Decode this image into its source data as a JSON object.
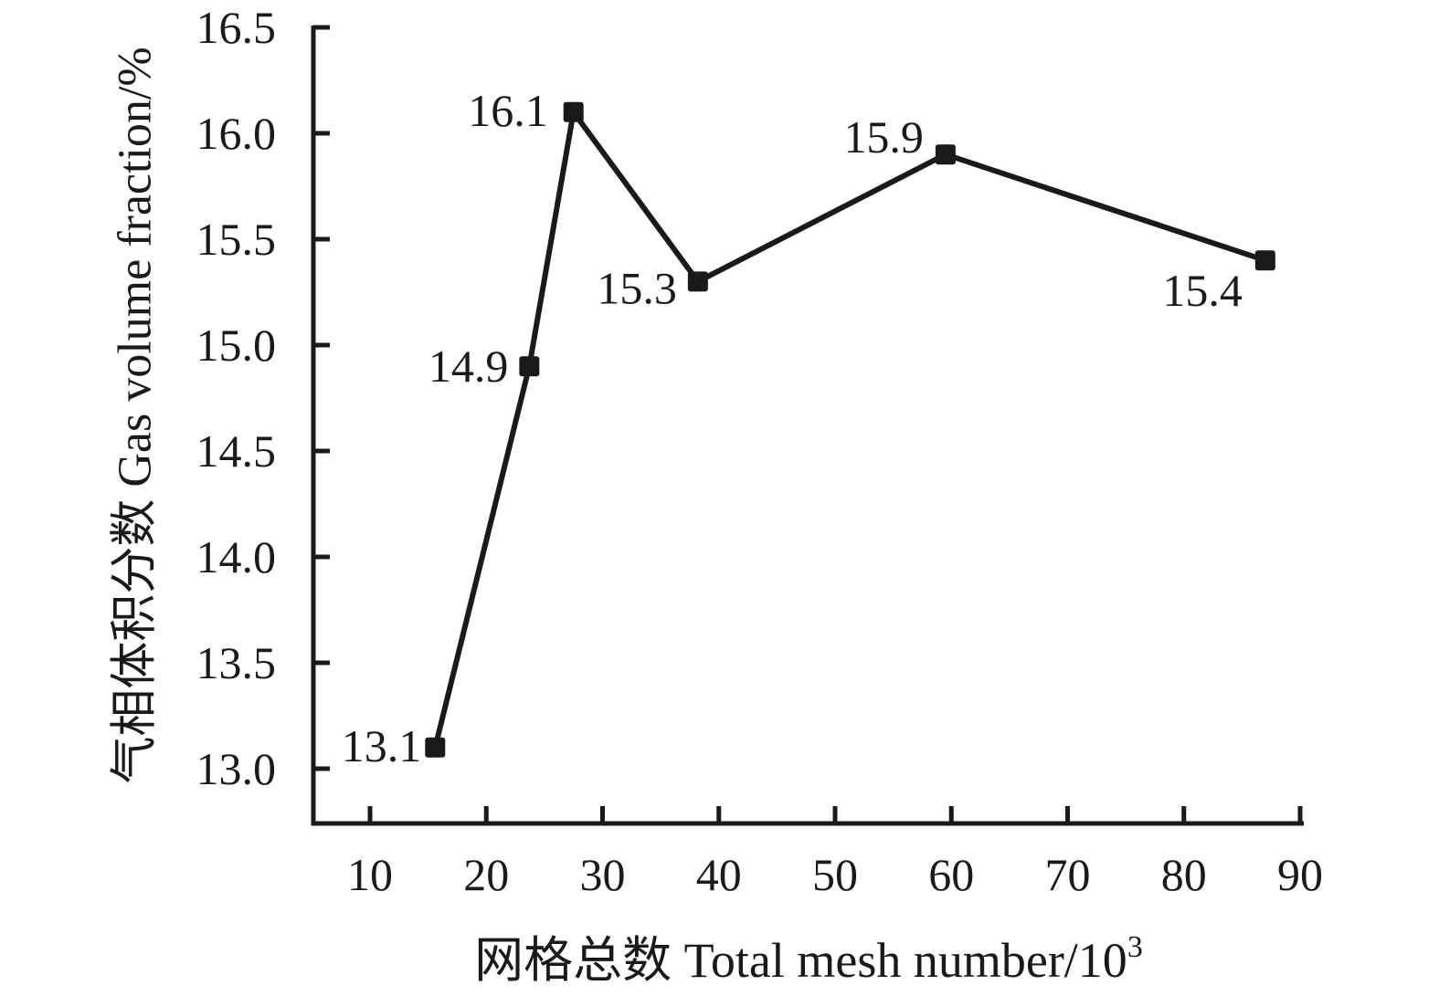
{
  "figure": {
    "background": "#ffffff",
    "ink_color": "#1a1a1a"
  },
  "chart_data": {
    "type": "line",
    "title": "",
    "xlabel_cjk": "网格总数",
    "xlabel_latin": " Total mesh number/10",
    "xlabel_superscript": "3",
    "ylabel": "气相体积分数 Gas volume fraction/%",
    "x_ticks": {
      "values": [
        10,
        20,
        30,
        40,
        50,
        60,
        70,
        80,
        90
      ],
      "labels": [
        "10",
        "20",
        "30",
        "40",
        "50",
        "60",
        "70",
        "80",
        "90"
      ]
    },
    "y_ticks": {
      "values": [
        13.0,
        13.5,
        14.0,
        14.5,
        15.0,
        15.5,
        16.0,
        16.5
      ],
      "labels": [
        "13.0",
        "13.5",
        "14.0",
        "14.5",
        "15.0",
        "15.5",
        "16.0",
        "16.5"
      ]
    },
    "xlim": [
      5.1,
      90.3
    ],
    "ylim": [
      12.74,
      16.51
    ],
    "grid": false,
    "legend": "none",
    "series": [
      {
        "name": "Gas volume fraction",
        "color": "#1a1a1a",
        "marker": "square",
        "points": [
          {
            "x": 15.6,
            "y": 13.1,
            "label": "13.1",
            "label_dx": -15,
            "label_dy": -2
          },
          {
            "x": 23.7,
            "y": 14.9,
            "label": "14.9",
            "label_dx": -23,
            "label_dy": 0
          },
          {
            "x": 27.5,
            "y": 16.1,
            "label": "16.1",
            "label_dx": -28,
            "label_dy": -2
          },
          {
            "x": 38.2,
            "y": 15.3,
            "label": "15.3",
            "label_dx": -23,
            "label_dy": 7
          },
          {
            "x": 59.5,
            "y": 15.9,
            "label": "15.9",
            "label_dx": -24,
            "label_dy": -19
          },
          {
            "x": 87.0,
            "y": 15.4,
            "label": "15.4",
            "label_dx": -25,
            "label_dy": 33
          }
        ]
      }
    ]
  }
}
